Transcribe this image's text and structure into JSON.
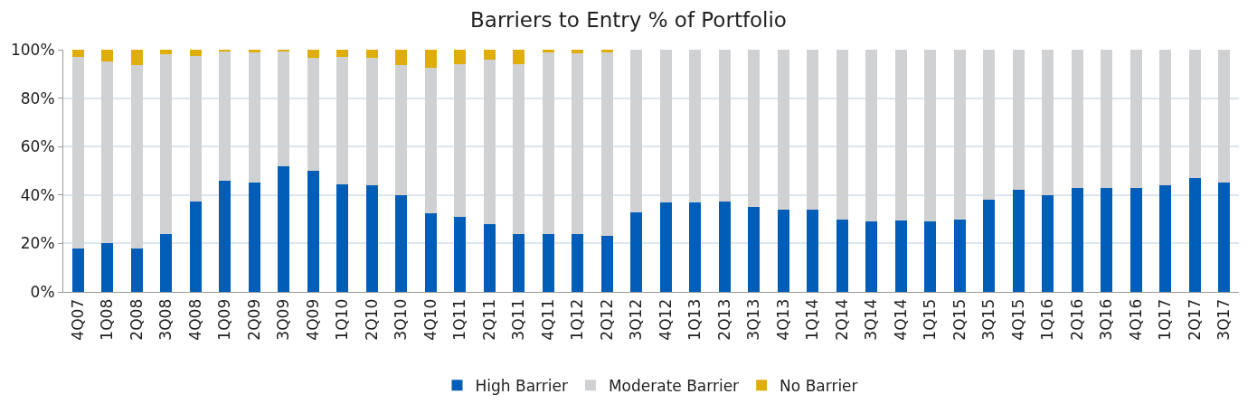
{
  "chart_data": {
    "type": "bar",
    "title": "Barriers to Entry % of Portfolio",
    "stacked": true,
    "categories": [
      "4Q07",
      "1Q08",
      "2Q08",
      "3Q08",
      "4Q08",
      "1Q09",
      "2Q09",
      "3Q09",
      "4Q09",
      "1Q10",
      "2Q10",
      "3Q10",
      "4Q10",
      "1Q11",
      "2Q11",
      "3Q11",
      "4Q11",
      "1Q12",
      "2Q12",
      "3Q12",
      "4Q12",
      "1Q13",
      "2Q13",
      "3Q13",
      "4Q13",
      "1Q14",
      "2Q14",
      "3Q14",
      "4Q14",
      "1Q15",
      "2Q15",
      "3Q15",
      "4Q15",
      "1Q16",
      "2Q16",
      "3Q16",
      "4Q16",
      "1Q17",
      "2Q17",
      "3Q17"
    ],
    "series": [
      {
        "name": "High Barrier",
        "color": "#005eb8",
        "values": [
          18,
          20,
          18,
          24,
          37.5,
          46,
          45,
          52,
          50,
          44.5,
          44,
          40,
          32.5,
          31,
          28,
          24,
          24,
          24,
          23,
          33,
          37,
          37,
          37.5,
          35,
          34,
          34,
          30,
          29,
          29.5,
          29,
          30,
          38,
          42,
          40,
          43,
          43,
          43,
          44,
          47,
          45
        ]
      },
      {
        "name": "Moderate Barrier",
        "color": "#d0d1d3",
        "values": [
          79,
          75,
          75.5,
          74,
          60,
          53.5,
          54,
          47.5,
          46.5,
          52.5,
          52.5,
          53.5,
          60,
          63,
          68,
          70,
          75,
          74.5,
          76,
          67,
          63,
          63,
          62.5,
          65,
          66,
          66,
          70,
          71,
          70.5,
          71,
          70,
          62,
          58,
          60,
          57,
          57,
          57,
          56,
          53,
          55
        ]
      },
      {
        "name": "No Barrier",
        "color": "#e0ae0c",
        "values": [
          3,
          5,
          6.5,
          2,
          2.5,
          0.5,
          1,
          0.5,
          3.5,
          3,
          3.5,
          6.5,
          7.5,
          6,
          4,
          6,
          1,
          1.5,
          1,
          0,
          0,
          0,
          0,
          0,
          0,
          0,
          0,
          0,
          0,
          0,
          0,
          0,
          0,
          0,
          0,
          0,
          0,
          0,
          0,
          0
        ]
      }
    ],
    "ylim": [
      0,
      100
    ],
    "yticks": [
      {
        "value": 0,
        "label": "0%"
      },
      {
        "value": 20,
        "label": "20%"
      },
      {
        "value": 40,
        "label": "40%"
      },
      {
        "value": 60,
        "label": "60%"
      },
      {
        "value": 80,
        "label": "80%"
      },
      {
        "value": 100,
        "label": "100%"
      }
    ],
    "grid": "y",
    "legend": "bottom"
  }
}
